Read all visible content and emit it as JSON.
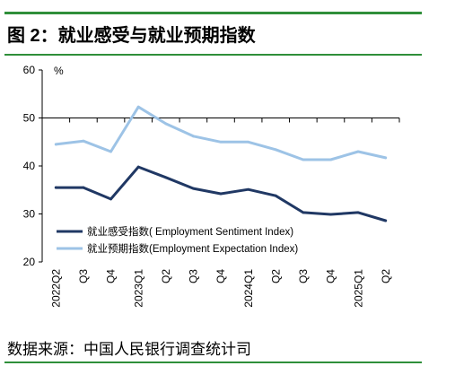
{
  "figure": {
    "source": "数据来源：中国人民银行调查统计司"
  },
  "colors": {
    "rule": "#2f8f3a",
    "axis": "#000000"
  },
  "chart_data": {
    "type": "line",
    "title": "图 2：就业感受与就业预期指数",
    "xlabel": "",
    "ylabel": "%",
    "ylim": [
      20,
      60
    ],
    "yticks": [
      20,
      30,
      40,
      50,
      60
    ],
    "x_axis_at": 50,
    "grid": false,
    "legend_position": "bottom-left",
    "categories": [
      "2022Q2",
      "Q3",
      "Q4",
      "2023Q1",
      "Q2",
      "Q3",
      "Q4",
      "2024Q1",
      "Q2",
      "Q3",
      "Q4",
      "2025Q1",
      "Q2"
    ],
    "series": [
      {
        "name": "就业感受指数( Employment Sentiment Index)",
        "color": "#203864",
        "values": [
          35.5,
          35.5,
          33.1,
          39.8,
          37.6,
          35.3,
          34.2,
          35.1,
          33.8,
          30.3,
          29.9,
          30.3,
          28.6
        ]
      },
      {
        "name": "就业预期指数(Employment Expectation Index)",
        "color": "#9dc3e6",
        "values": [
          44.5,
          45.2,
          43.0,
          52.3,
          48.8,
          46.2,
          45.0,
          45.0,
          43.4,
          41.3,
          41.3,
          43.0,
          41.7
        ]
      }
    ]
  }
}
